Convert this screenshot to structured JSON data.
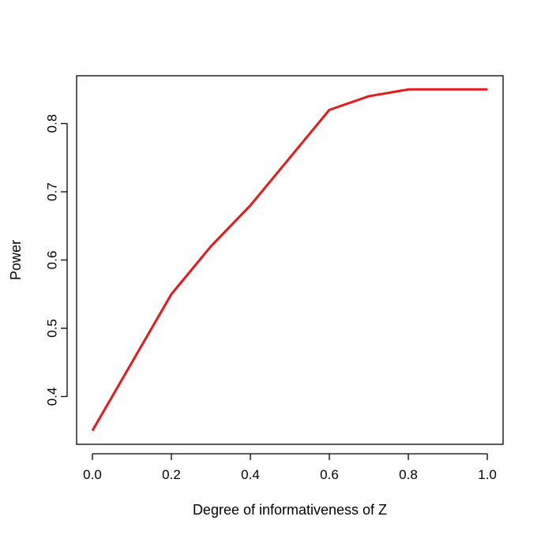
{
  "chart_data": {
    "type": "line",
    "title": "",
    "xlabel": "Degree of informativeness of Z",
    "ylabel": "Power",
    "x": [
      0.0,
      0.1,
      0.2,
      0.3,
      0.4,
      0.5,
      0.6,
      0.7,
      0.8,
      0.9,
      1.0
    ],
    "series": [
      {
        "values": [
          0.35,
          0.45,
          0.55,
          0.62,
          0.68,
          0.75,
          0.82,
          0.84,
          0.85,
          0.85,
          0.85
        ],
        "color": "#e41a1c"
      }
    ],
    "xlim": [
      -0.04,
      1.04
    ],
    "ylim": [
      0.33,
      0.87
    ],
    "xticks": [
      0.0,
      0.2,
      0.4,
      0.6,
      0.8,
      1.0
    ],
    "xtick_labels": [
      "0.0",
      "0.2",
      "0.4",
      "0.6",
      "0.8",
      "1.0"
    ],
    "yticks": [
      0.4,
      0.5,
      0.6,
      0.7,
      0.8
    ],
    "ytick_labels": [
      "0.4",
      "0.5",
      "0.6",
      "0.7",
      "0.8"
    ],
    "grid": false,
    "legend": "none"
  }
}
